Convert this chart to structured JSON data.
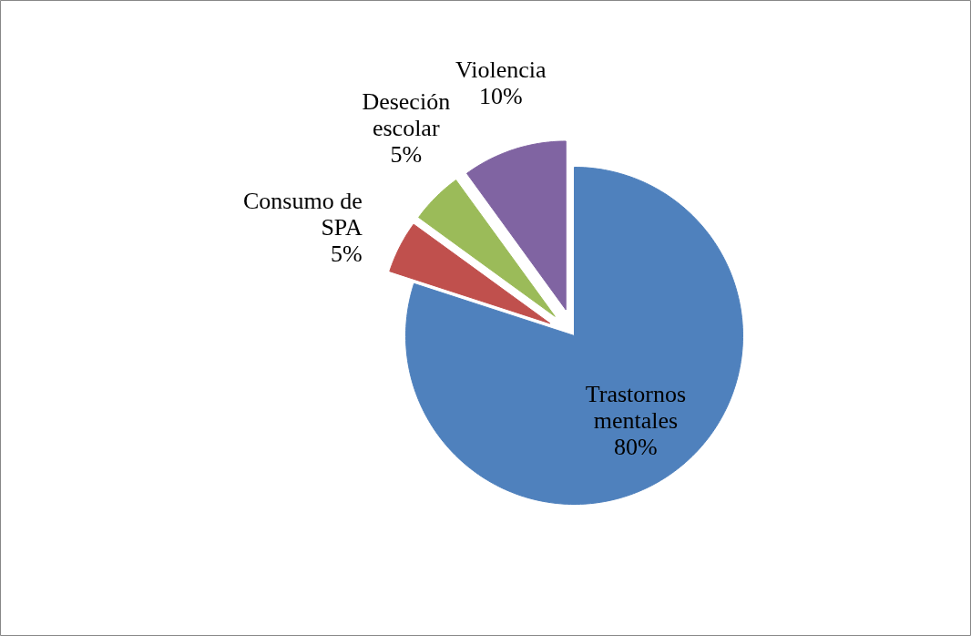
{
  "chart_data": {
    "type": "pie",
    "categories": [
      "Trastornos mentales",
      "Consumo de SPA",
      "Deseción escolar",
      "Violencia"
    ],
    "values": [
      80,
      5,
      5,
      10
    ],
    "value_labels": [
      "80%",
      "5%",
      "5%",
      "10%"
    ],
    "colors": [
      "#4f81bd",
      "#c0504d",
      "#9bbb59",
      "#8064a2"
    ],
    "legend": false
  }
}
